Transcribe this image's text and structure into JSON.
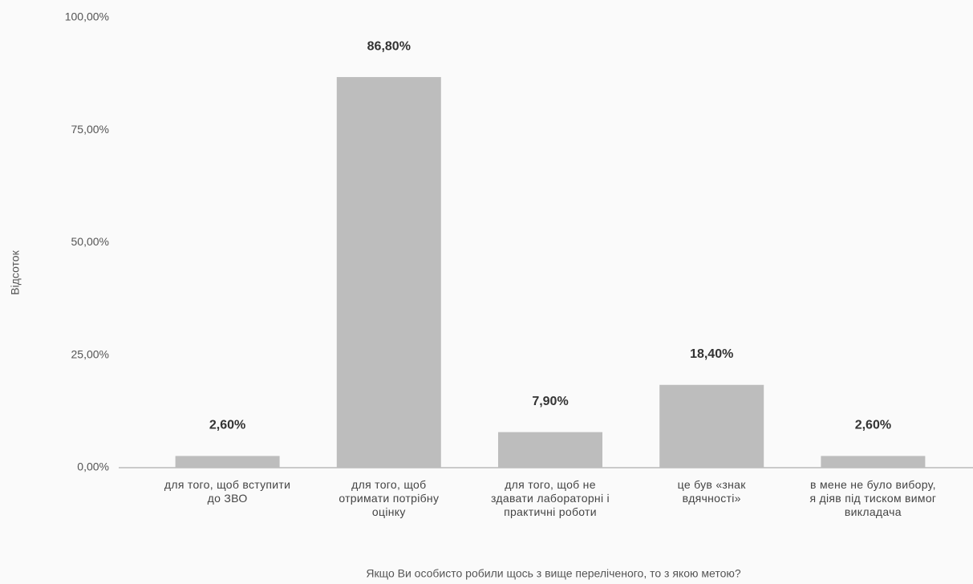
{
  "chart_data": {
    "type": "bar",
    "x_label": "Якщо Ви особисто робили щось з вище переліченого, то з якою метою?",
    "y_label": "Відсоток",
    "categories": [
      "для того, щоб вступити до ЗВО",
      "для того, щоб отримати потрібну оцінку",
      "для того, щоб не здавати лабораторні і практичні роботи",
      "це був «знак вдячності»",
      "в мене не було вибору, я діяв під тиском вимог викладача"
    ],
    "values": [
      2.6,
      86.8,
      7.9,
      18.4,
      2.6
    ],
    "value_labels": [
      "2,60%",
      "86,80%",
      "7,90%",
      "18,40%",
      "2,60%"
    ],
    "color": "#bdbdbd",
    "ylim": [
      0,
      100
    ],
    "yticks": [
      {
        "value": 0,
        "label": "0,00%"
      },
      {
        "value": 25,
        "label": "25,00%"
      },
      {
        "value": 50,
        "label": "50,00%"
      },
      {
        "value": 75,
        "label": "75,00%"
      },
      {
        "value": 100,
        "label": "100,00%"
      }
    ],
    "grid": false
  }
}
